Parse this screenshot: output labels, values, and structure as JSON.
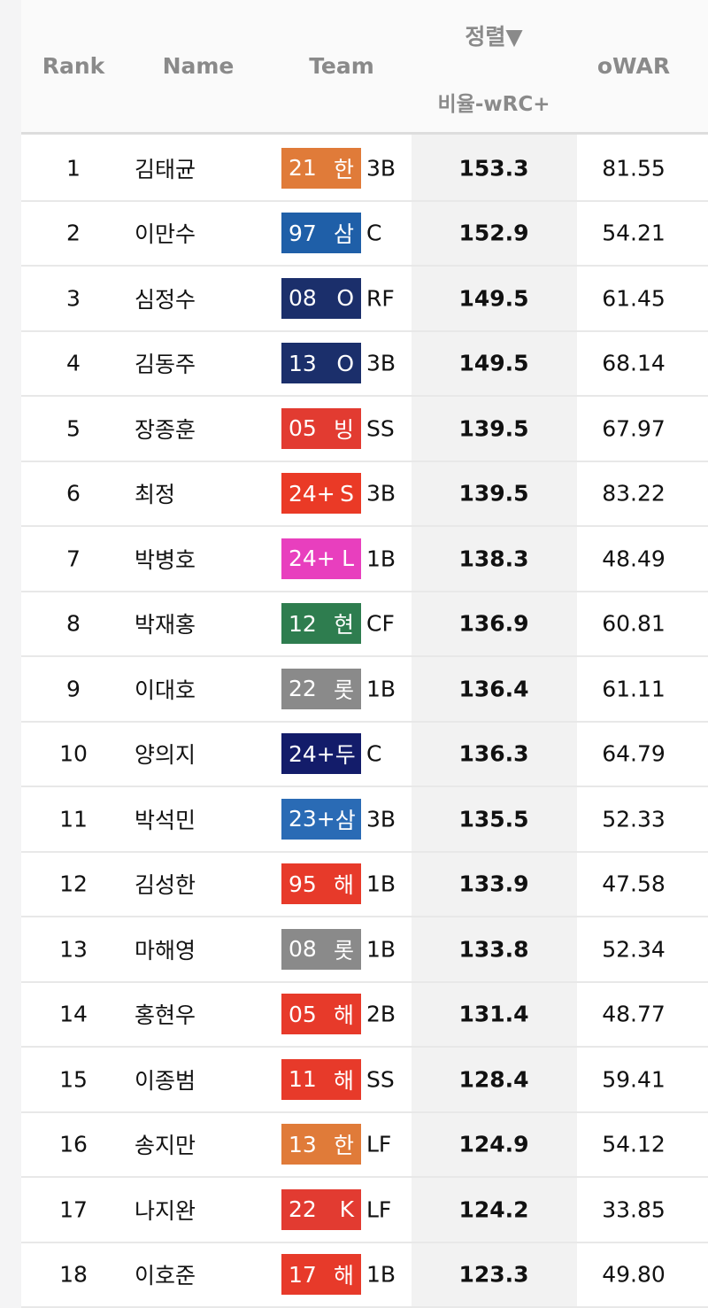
{
  "header": {
    "rank": "Rank",
    "name": "Name",
    "team": "Team",
    "sort": "정렬▼",
    "sort_col": "비율-wRC+",
    "owar": "oWAR"
  },
  "rows": [
    {
      "rank": "1",
      "name": "김태균",
      "year": "21",
      "team": "한",
      "color": "#e07b39",
      "pos": "3B",
      "wrc": "153.3",
      "owar": "81.55"
    },
    {
      "rank": "2",
      "name": "이만수",
      "year": "97",
      "team": "삼",
      "color": "#1f5fa8",
      "pos": "C",
      "wrc": "152.9",
      "owar": "54.21"
    },
    {
      "rank": "3",
      "name": "심정수",
      "year": "08",
      "team": "O",
      "color": "#1b2f6b",
      "pos": "RF",
      "wrc": "149.5",
      "owar": "61.45"
    },
    {
      "rank": "4",
      "name": "김동주",
      "year": "13",
      "team": "O",
      "color": "#1b2f6b",
      "pos": "3B",
      "wrc": "149.5",
      "owar": "68.14"
    },
    {
      "rank": "5",
      "name": "장종훈",
      "year": "05",
      "team": "빙",
      "color": "#e23b31",
      "pos": "SS",
      "wrc": "139.5",
      "owar": "67.97"
    },
    {
      "rank": "6",
      "name": "최정",
      "year": "24+",
      "team": "S",
      "color": "#ea3a26",
      "pos": "3B",
      "wrc": "139.5",
      "owar": "83.22"
    },
    {
      "rank": "7",
      "name": "박병호",
      "year": "24+",
      "team": "L",
      "color": "#e83fbe",
      "pos": "1B",
      "wrc": "138.3",
      "owar": "48.49"
    },
    {
      "rank": "8",
      "name": "박재홍",
      "year": "12",
      "team": "현",
      "color": "#2e7d4f",
      "pos": "CF",
      "wrc": "136.9",
      "owar": "60.81"
    },
    {
      "rank": "9",
      "name": "이대호",
      "year": "22",
      "team": "롯",
      "color": "#8a8a8a",
      "pos": "1B",
      "wrc": "136.4",
      "owar": "61.11"
    },
    {
      "rank": "10",
      "name": "양의지",
      "year": "24+",
      "team": "두",
      "color": "#131c6a",
      "pos": "C",
      "wrc": "136.3",
      "owar": "64.79"
    },
    {
      "rank": "11",
      "name": "박석민",
      "year": "23+",
      "team": "삼",
      "color": "#2a6bb5",
      "pos": "3B",
      "wrc": "135.5",
      "owar": "52.33"
    },
    {
      "rank": "12",
      "name": "김성한",
      "year": "95",
      "team": "해",
      "color": "#e73a2a",
      "pos": "1B",
      "wrc": "133.9",
      "owar": "47.58"
    },
    {
      "rank": "13",
      "name": "마해영",
      "year": "08",
      "team": "롯",
      "color": "#8a8a8a",
      "pos": "1B",
      "wrc": "133.8",
      "owar": "52.34"
    },
    {
      "rank": "14",
      "name": "홍현우",
      "year": "05",
      "team": "해",
      "color": "#e73a2a",
      "pos": "2B",
      "wrc": "131.4",
      "owar": "48.77"
    },
    {
      "rank": "15",
      "name": "이종범",
      "year": "11",
      "team": "해",
      "color": "#e73a2a",
      "pos": "SS",
      "wrc": "128.4",
      "owar": "59.41"
    },
    {
      "rank": "16",
      "name": "송지만",
      "year": "13",
      "team": "한",
      "color": "#e07b39",
      "pos": "LF",
      "wrc": "124.9",
      "owar": "54.12"
    },
    {
      "rank": "17",
      "name": "나지완",
      "year": "22",
      "team": "K",
      "color": "#e23b31",
      "pos": "LF",
      "wrc": "124.2",
      "owar": "33.85"
    },
    {
      "rank": "18",
      "name": "이호준",
      "year": "17",
      "team": "해",
      "color": "#e73a2a",
      "pos": "1B",
      "wrc": "123.3",
      "owar": "49.80"
    }
  ]
}
